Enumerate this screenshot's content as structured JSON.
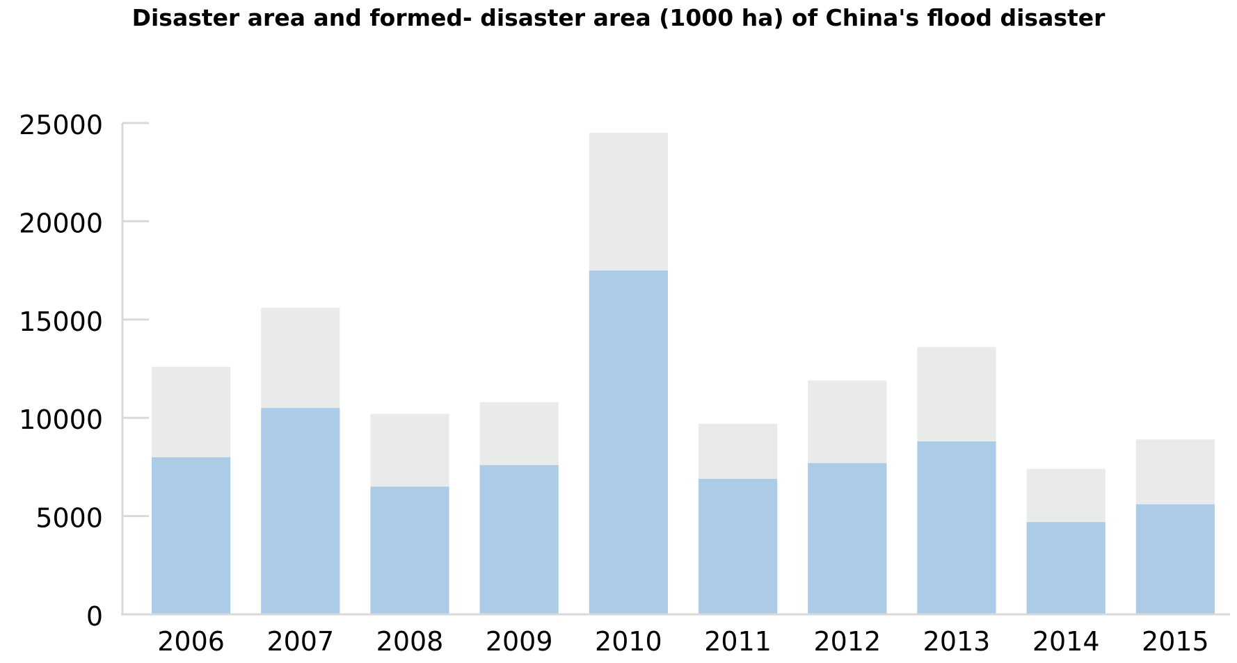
{
  "chart_data": {
    "type": "bar",
    "stacked": true,
    "title": "Disaster area and formed- disaster area (1000 ha) of China's flood disaster",
    "xlabel": "",
    "ylabel": "",
    "categories": [
      "2006",
      "2007",
      "2008",
      "2009",
      "2010",
      "2011",
      "2012",
      "2013",
      "2014",
      "2015"
    ],
    "series": [
      {
        "values": [
          8000,
          10500,
          6500,
          7600,
          17500,
          6900,
          7700,
          8800,
          4700,
          5600
        ],
        "color": "#abcbe6"
      },
      {
        "values": [
          4600,
          5100,
          3700,
          3200,
          7000,
          2800,
          4200,
          4800,
          2700,
          3300
        ],
        "color": "#e9ebeb"
      }
    ],
    "yticks": [
      0,
      5000,
      10000,
      15000,
      20000,
      25000
    ],
    "ylim": [
      0,
      25000
    ],
    "grid": false,
    "legend": "none"
  }
}
